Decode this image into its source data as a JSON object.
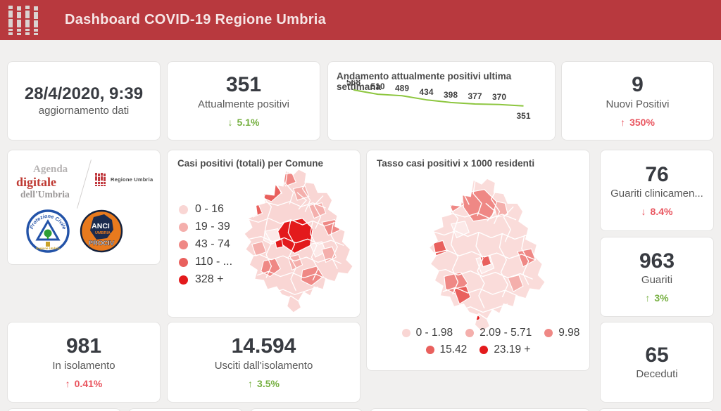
{
  "header": {
    "title": "Dashboard COVID-19 Regione Umbria",
    "bg_color": "#b8393e"
  },
  "stats": {
    "updated": {
      "value": "28/4/2020, 9:39",
      "label": "aggiornamento dati"
    },
    "attualmente_positivi": {
      "value": "351",
      "label": "Attualmente positivi",
      "arrow": "↓",
      "delta": "5.1%",
      "trend": "good"
    },
    "nuovi_positivi": {
      "value": "9",
      "label": "Nuovi Positivi",
      "arrow": "↑",
      "delta": "350%",
      "trend": "bad"
    },
    "guariti_clinicamente": {
      "value": "76",
      "label": "Guariti clinicamen...",
      "arrow": "↓",
      "delta": "8.4%",
      "trend": "bad"
    },
    "guariti": {
      "value": "963",
      "label": "Guariti",
      "arrow": "↑",
      "delta": "3%",
      "trend": "good"
    },
    "in_isolamento": {
      "value": "981",
      "label": "In isolamento",
      "arrow": "↑",
      "delta": "0.41%",
      "trend": "bad"
    },
    "usciti_isolamento": {
      "value": "14.594",
      "label": "Usciti dall'isolamento",
      "arrow": "↑",
      "delta": "3.5%",
      "trend": "good"
    },
    "deceduti": {
      "value": "65",
      "label": "Deceduti"
    }
  },
  "chart_data": {
    "type": "line",
    "title": "Andamento attualmente positivi ultima settimana",
    "values": [
      568,
      510,
      489,
      434,
      398,
      377,
      370,
      351
    ],
    "data_labels": true,
    "line_color": "#8dc63f",
    "ylim": [
      340,
      590
    ],
    "axes_visible": false,
    "legend": "none"
  },
  "map_comune": {
    "title": "Casi positivi (totali) per Comune",
    "legend": [
      {
        "label": "0 - 16",
        "color": "#f9d6d4"
      },
      {
        "label": "19 - 39",
        "color": "#f4afac"
      },
      {
        "label": "43 - 74",
        "color": "#ef8885"
      },
      {
        "label": "110 - ...",
        "color": "#e9605d"
      },
      {
        "label": "328 +",
        "color": "#e31a1c"
      }
    ]
  },
  "map_tasso": {
    "title": "Tasso casi positivi x 1000 residenti",
    "legend_row1": [
      {
        "label": "0 - 1.98",
        "color": "#f9d6d4"
      },
      {
        "label": "2.09 - 5.71",
        "color": "#f4afac"
      },
      {
        "label": "9.98",
        "color": "#ef8885"
      }
    ],
    "legend_row2": [
      {
        "label": "15.42",
        "color": "#e9605d"
      },
      {
        "label": "23.19 +",
        "color": "#e31a1c"
      }
    ]
  },
  "logos": {
    "agenda_line1": "Agenda",
    "agenda_line2": "digitale",
    "agenda_line3": "dell'Umbria",
    "regione_umbria": "Regione Umbria",
    "protezione_ring": "Protezione Civile",
    "protezione_sub": "Regione Umbria",
    "anci_line1": "ANCI",
    "anci_line2": "UMBRIA",
    "anci_line3": "PROCIV"
  }
}
